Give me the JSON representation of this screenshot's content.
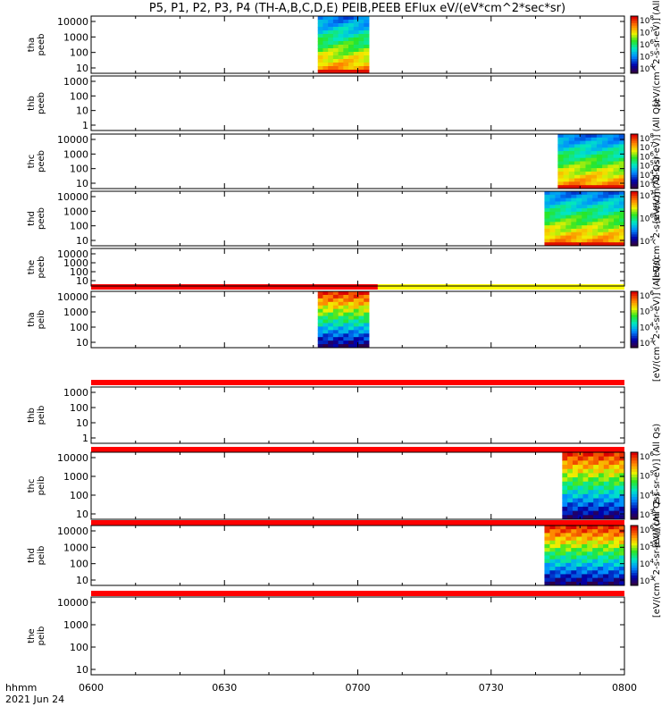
{
  "title": "P5, P1, P2, P3, P4 (TH-A,B,C,D,E) PEIB,PEEB EFlux eV/(eV*cm^2*sec*sr)",
  "xaxis": {
    "ticks": [
      "0600",
      "0630",
      "0700",
      "0730",
      "0800"
    ],
    "label_line1": "hhmm",
    "label_line2": "2021 Jun 24"
  },
  "colors": {
    "red_bar": "#ff0000",
    "yellow_bar": "#ffff00",
    "frame": "#000000"
  },
  "chart_data": {
    "type": "heatmap",
    "x_range_minutes": [
      0,
      120
    ],
    "panels": [
      {
        "probe": "tha",
        "product": "peeb",
        "ytick_labels": [
          "10",
          "100",
          "1000",
          "10000"
        ],
        "data_segments": [
          [
            51,
            62.5
          ]
        ],
        "cb_ticks": [
          "10^8",
          "10^7",
          "10^6",
          "10^5",
          "10^4"
        ],
        "cb_label": "[eV/(cm^2-s-sr-eV)] (All Qs)"
      },
      {
        "probe": "thb",
        "product": "peeb",
        "ytick_labels": [
          "1",
          "10",
          "100",
          "1000"
        ],
        "data_segments": [],
        "cb_ticks": [],
        "cb_label": ""
      },
      {
        "probe": "thc",
        "product": "peeb",
        "ytick_labels": [
          "10",
          "100",
          "1000",
          "10000"
        ],
        "data_segments": [
          [
            105,
            120
          ]
        ],
        "cb_ticks": [
          "10^8",
          "10^7",
          "10^6",
          "10^5",
          "10^4",
          "10^3"
        ],
        "cb_label": "[eV/(cm^2-s-sr-eV)] (All Qs)"
      },
      {
        "probe": "thd",
        "product": "peeb",
        "ytick_labels": [
          "10",
          "100",
          "1000",
          "10000"
        ],
        "data_segments": [
          [
            102,
            120
          ]
        ],
        "cb_ticks": [
          "10^7",
          "10^6",
          "10^5"
        ],
        "cb_label": "[eV/(cm^2-s-sr-eV)] (All Qs)"
      },
      {
        "probe": "the",
        "product": "peeb",
        "ytick_labels": [
          "10",
          "100",
          "1000",
          "10000"
        ],
        "data_segments": [],
        "cb_ticks": [],
        "cb_label": ""
      },
      {
        "probe": "tha",
        "product": "peib",
        "ytick_labels": [
          "10",
          "100",
          "1000",
          "10000"
        ],
        "data_segments": [
          [
            51,
            62.5
          ]
        ],
        "cb_ticks": [
          "10^6",
          "10^5",
          "10^4",
          "10^3"
        ],
        "cb_label": "[eV/(cm^2-s-sr-eV)] (All Qs)"
      },
      {
        "probe": "thb",
        "product": "peib",
        "ytick_labels": [
          "1",
          "10",
          "100",
          "1000"
        ],
        "data_segments": [],
        "cb_ticks": [],
        "cb_label": ""
      },
      {
        "probe": "thc",
        "product": "peib",
        "ytick_labels": [
          "10",
          "100",
          "1000",
          "10000"
        ],
        "data_segments": [
          [
            106,
            120
          ]
        ],
        "cb_ticks": [
          "10^6",
          "10^5",
          "10^4",
          "10^3"
        ],
        "cb_label": "[eV/(cm^2-s-sr-eV)] (All Qs)"
      },
      {
        "probe": "thd",
        "product": "peib",
        "ytick_labels": [
          "10",
          "100",
          "1000",
          "10000"
        ],
        "data_segments": [
          [
            102,
            120
          ]
        ],
        "cb_ticks": [
          "10^6",
          "10^5",
          "10^4",
          "10^3"
        ],
        "cb_label": "[eV/(cm^2-s-sr-eV)] (All Qs)"
      },
      {
        "probe": "the",
        "product": "peib",
        "ytick_labels": [
          "10",
          "100",
          "1000",
          "10000"
        ],
        "data_segments": [],
        "cb_ticks": [],
        "cb_label": ""
      }
    ],
    "flag_bars": [
      {
        "above_panel": 5,
        "segments": [
          {
            "from": 0,
            "to": 64.5,
            "color": "red"
          },
          {
            "from": 64.5,
            "to": 120,
            "color": "yellow"
          }
        ]
      },
      {
        "above_panel": 6,
        "segments": [
          {
            "from": 0,
            "to": 120,
            "color": "red"
          }
        ]
      },
      {
        "above_panel": 7,
        "segments": [
          {
            "from": 0,
            "to": 120,
            "color": "red"
          }
        ]
      },
      {
        "above_panel": 8,
        "segments": [
          {
            "from": 0,
            "to": 120,
            "color": "red"
          }
        ]
      },
      {
        "above_panel": 9,
        "segments": [
          {
            "from": 0,
            "to": 120,
            "color": "red"
          }
        ]
      }
    ]
  }
}
